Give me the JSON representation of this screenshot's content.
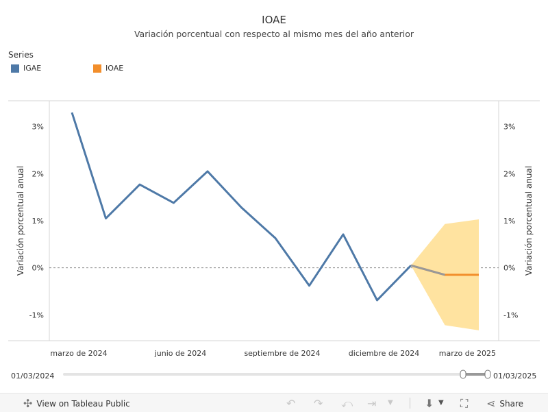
{
  "chart_data": {
    "type": "line",
    "title": "IOAE",
    "subtitle": "Variación porcentual con respecto al mismo mes del año anterior",
    "legend_title": "Series",
    "legend_placement": "top-left",
    "ylabel": "Variación porcentual anual",
    "ylim": [
      -1.55,
      3.55
    ],
    "y_ticks": [
      "3%",
      "2%",
      "1%",
      "0%",
      "-1%"
    ],
    "y_tick_values": [
      3,
      2,
      1,
      0,
      -1
    ],
    "x_ticks": [
      "marzo de 2024",
      "junio de 2024",
      "septiembre de 2024",
      "diciembre de 2024",
      "marzo de 2025"
    ],
    "x_tick_index": [
      0,
      3,
      6,
      9,
      12
    ],
    "grid": false,
    "zero_line": true,
    "x": [
      "2024-03",
      "2024-04",
      "2024-05",
      "2024-06",
      "2024-07",
      "2024-08",
      "2024-09",
      "2024-10",
      "2024-11",
      "2024-12",
      "2025-01",
      "2025-02",
      "2025-03"
    ],
    "series": [
      {
        "name": "IGAE",
        "color": "#4e79a7",
        "values": [
          3.3,
          1.05,
          1.77,
          1.38,
          2.05,
          1.28,
          0.63,
          -0.38,
          0.71,
          -0.69,
          0.05,
          null,
          null
        ]
      },
      {
        "name": "IOAE",
        "color": "#f28e2b",
        "values": [
          null,
          null,
          null,
          null,
          null,
          null,
          null,
          null,
          null,
          null,
          0.05,
          -0.15,
          -0.15
        ]
      }
    ],
    "connector": {
      "from_index": 10,
      "to_index": 11,
      "color": "#999999"
    },
    "confidence_band": {
      "color": "#ffe3a0",
      "x_index": [
        10,
        11,
        12
      ],
      "upper": [
        0.05,
        0.93,
        1.03
      ],
      "lower": [
        0.05,
        -1.22,
        -1.33
      ]
    }
  },
  "slider": {
    "start_label": "01/03/2024",
    "end_label": "01/03/2025"
  },
  "toolbar": {
    "view_label": "View on Tableau Public",
    "share_label": "Share",
    "icons": [
      "tableau-icon",
      "undo-icon",
      "redo-icon",
      "revert-icon",
      "refresh-icon",
      "download-icon",
      "fullscreen-icon",
      "share-icon"
    ]
  }
}
